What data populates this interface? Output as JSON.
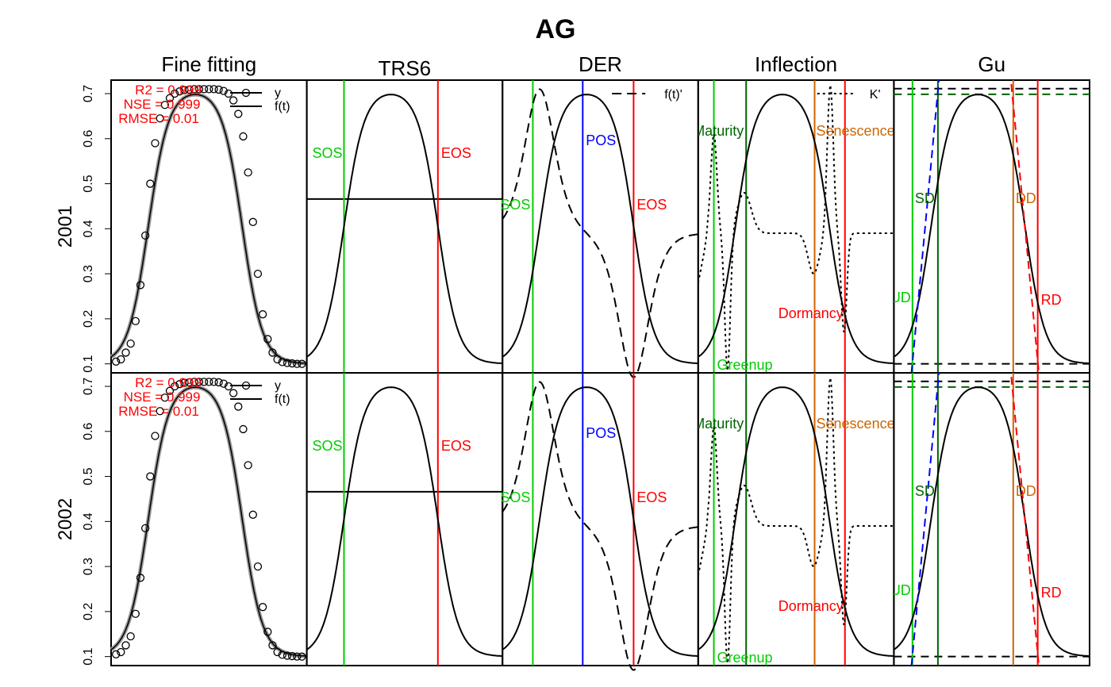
{
  "title": "AG",
  "colors": {
    "black": "#000000",
    "green": "#00cd00",
    "darkgreen": "#006400",
    "blue": "#0000ff",
    "red": "#ff0000",
    "orange": "#cd6600",
    "gray": "#999999"
  },
  "chart_data": {
    "type": "line",
    "rows": [
      "2001",
      "2002"
    ],
    "columns": [
      "Fine fitting",
      "TRS6",
      "DER",
      "Inflection",
      "Gu"
    ],
    "y_ticks": [
      "0.1",
      "0.2",
      "0.3",
      "0.4",
      "0.5",
      "0.6",
      "0.7"
    ],
    "ylim": [
      0.08,
      0.73
    ],
    "curve": {
      "name": "f(t)",
      "base": 0.1,
      "peak": 0.71,
      "sos_x": 0.19,
      "eos_x": 0.67,
      "width": 0.052
    },
    "fit_points": {
      "name": "y",
      "x": [
        0.025,
        0.05,
        0.075,
        0.1,
        0.125,
        0.15,
        0.175,
        0.2,
        0.225,
        0.25,
        0.275,
        0.3,
        0.325,
        0.35,
        0.375,
        0.4,
        0.425,
        0.45,
        0.475,
        0.5,
        0.525,
        0.55,
        0.575,
        0.6,
        0.625,
        0.65,
        0.675,
        0.7,
        0.725,
        0.75,
        0.775,
        0.8,
        0.825,
        0.85,
        0.875,
        0.9,
        0.925,
        0.95,
        0.975
      ],
      "y": [
        0.105,
        0.11,
        0.125,
        0.145,
        0.195,
        0.275,
        0.385,
        0.5,
        0.59,
        0.645,
        0.675,
        0.69,
        0.7,
        0.705,
        0.708,
        0.709,
        0.71,
        0.71,
        0.71,
        0.71,
        0.71,
        0.709,
        0.706,
        0.7,
        0.685,
        0.655,
        0.605,
        0.525,
        0.415,
        0.3,
        0.21,
        0.155,
        0.125,
        0.11,
        0.104,
        0.102,
        0.101,
        0.1,
        0.1
      ]
    },
    "fit_stats": [
      "R2 = 0.999",
      "NSE = 0.999",
      "RMSE = 0.01"
    ],
    "legends": {
      "fine": [
        "y",
        "f(t)"
      ],
      "der": "f(t)'",
      "inflection": "K'"
    },
    "trs6": {
      "threshold": 0.466,
      "sos_x": 0.19,
      "eos_x": 0.67,
      "labels": [
        "SOS",
        "EOS"
      ]
    },
    "der": {
      "sos_x": 0.155,
      "pos_x": 0.41,
      "eos_x": 0.67,
      "labels": [
        "SOS",
        "POS",
        "EOS"
      ]
    },
    "inflection": {
      "greenup_x": 0.08,
      "maturity_x": 0.245,
      "senescence_x": 0.595,
      "dormancy_x": 0.75,
      "labels": [
        "Greenup",
        "Maturity",
        "Senescence",
        "Dormancy"
      ]
    },
    "gu": {
      "ud_x": 0.095,
      "sd_x": 0.225,
      "dd_x": 0.61,
      "rd_x": 0.735,
      "labels": [
        "UD",
        "SD",
        "DD",
        "RD"
      ]
    }
  }
}
